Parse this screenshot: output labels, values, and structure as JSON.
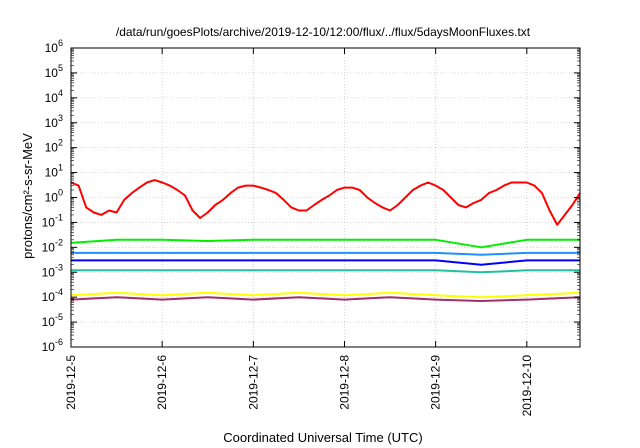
{
  "chart_data": {
    "type": "line",
    "title": "/data/run/goesPlots/archive/2019-12-10/12:00/flux/../flux/5daysMoonFluxes.txt",
    "xlabel": "Coordinated Universal Time (UTC)",
    "ylabel": "protons/cm²-s-sr-MeV",
    "y_scale": "log",
    "ylim": [
      1e-06,
      1000000.0
    ],
    "xlim": [
      "2019-12-05",
      "2019-12-10T14:00"
    ],
    "grid": true,
    "x_ticks": [
      "2019-12-5",
      "2019-12-6",
      "2019-12-7",
      "2019-12-8",
      "2019-12-9",
      "2019-12-10"
    ],
    "x_tick_values": [
      "2019-12-05",
      "2019-12-06",
      "2019-12-07",
      "2019-12-08",
      "2019-12-09",
      "2019-12-10"
    ],
    "y_ticks": [
      {
        "base": "10",
        "exp": "-6",
        "value": 1e-06
      },
      {
        "base": "10",
        "exp": "-5",
        "value": 1e-05
      },
      {
        "base": "10",
        "exp": "-4",
        "value": 0.0001
      },
      {
        "base": "10",
        "exp": "-3",
        "value": 0.001
      },
      {
        "base": "10",
        "exp": "-2",
        "value": 0.01
      },
      {
        "base": "10",
        "exp": "-1",
        "value": 0.1
      },
      {
        "base": "10",
        "exp": "0",
        "value": 1
      },
      {
        "base": "10",
        "exp": "1",
        "value": 10
      },
      {
        "base": "10",
        "exp": "2",
        "value": 100
      },
      {
        "base": "10",
        "exp": "3",
        "value": 1000
      },
      {
        "base": "10",
        "exp": "4",
        "value": 10000
      },
      {
        "base": "10",
        "exp": "5",
        "value": 100000
      },
      {
        "base": "10",
        "exp": "6",
        "value": 1000000
      }
    ],
    "series": [
      {
        "color": "#ff0000",
        "x": [
          "2019-12-05T00:00",
          "2019-12-05T02:00",
          "2019-12-05T04:00",
          "2019-12-05T06:00",
          "2019-12-05T08:00",
          "2019-12-05T10:00",
          "2019-12-05T12:00",
          "2019-12-05T14:00",
          "2019-12-05T16:00",
          "2019-12-05T18:00",
          "2019-12-05T20:00",
          "2019-12-05T22:00",
          "2019-12-06T00:00",
          "2019-12-06T02:00",
          "2019-12-06T04:00",
          "2019-12-06T06:00",
          "2019-12-06T08:00",
          "2019-12-06T10:00",
          "2019-12-06T12:00",
          "2019-12-06T14:00",
          "2019-12-06T16:00",
          "2019-12-06T18:00",
          "2019-12-06T20:00",
          "2019-12-06T22:00",
          "2019-12-07T00:00",
          "2019-12-07T02:00",
          "2019-12-07T04:00",
          "2019-12-07T06:00",
          "2019-12-07T08:00",
          "2019-12-07T10:00",
          "2019-12-07T12:00",
          "2019-12-07T14:00",
          "2019-12-07T16:00",
          "2019-12-07T18:00",
          "2019-12-07T20:00",
          "2019-12-07T22:00",
          "2019-12-08T00:00",
          "2019-12-08T02:00",
          "2019-12-08T04:00",
          "2019-12-08T06:00",
          "2019-12-08T08:00",
          "2019-12-08T10:00",
          "2019-12-08T12:00",
          "2019-12-08T14:00",
          "2019-12-08T16:00",
          "2019-12-08T18:00",
          "2019-12-08T20:00",
          "2019-12-08T22:00",
          "2019-12-09T00:00",
          "2019-12-09T02:00",
          "2019-12-09T04:00",
          "2019-12-09T06:00",
          "2019-12-09T08:00",
          "2019-12-09T10:00",
          "2019-12-09T12:00",
          "2019-12-09T14:00",
          "2019-12-09T16:00",
          "2019-12-09T18:00",
          "2019-12-09T20:00",
          "2019-12-09T22:00",
          "2019-12-10T00:00",
          "2019-12-10T02:00",
          "2019-12-10T04:00",
          "2019-12-10T06:00",
          "2019-12-10T08:00",
          "2019-12-10T10:00",
          "2019-12-10T12:00",
          "2019-12-10T14:00"
        ],
        "values": [
          4,
          3,
          0.4,
          0.25,
          0.2,
          0.3,
          0.25,
          0.8,
          1.5,
          2.5,
          4,
          5,
          4,
          3,
          2,
          1.2,
          0.3,
          0.15,
          0.25,
          0.5,
          0.8,
          1.5,
          2.5,
          3,
          3,
          2.5,
          2,
          1.5,
          0.8,
          0.4,
          0.3,
          0.3,
          0.5,
          0.8,
          1.2,
          2,
          2.5,
          2.5,
          2,
          1,
          0.6,
          0.4,
          0.3,
          0.5,
          1,
          2,
          3,
          4,
          3,
          2,
          1,
          0.5,
          0.4,
          0.6,
          0.8,
          1.5,
          2,
          3,
          4,
          4,
          4,
          3,
          1.5,
          0.3,
          0.08,
          0.2,
          0.5,
          1.5
        ]
      },
      {
        "color": "#00ee00",
        "x": [
          "2019-12-05T00:00",
          "2019-12-05T12:00",
          "2019-12-06T00:00",
          "2019-12-06T12:00",
          "2019-12-07T00:00",
          "2019-12-07T12:00",
          "2019-12-08T00:00",
          "2019-12-08T12:00",
          "2019-12-09T00:00",
          "2019-12-09T12:00",
          "2019-12-10T00:00",
          "2019-12-10T14:00"
        ],
        "values": [
          0.015,
          0.02,
          0.02,
          0.018,
          0.02,
          0.02,
          0.02,
          0.02,
          0.02,
          0.01,
          0.02,
          0.02
        ]
      },
      {
        "color": "#0000ff",
        "x": [
          "2019-12-05T00:00",
          "2019-12-05T12:00",
          "2019-12-06T00:00",
          "2019-12-06T12:00",
          "2019-12-07T00:00",
          "2019-12-07T12:00",
          "2019-12-08T00:00",
          "2019-12-08T12:00",
          "2019-12-09T00:00",
          "2019-12-09T12:00",
          "2019-12-10T00:00",
          "2019-12-10T14:00"
        ],
        "values": [
          0.003,
          0.003,
          0.003,
          0.003,
          0.003,
          0.003,
          0.003,
          0.003,
          0.003,
          0.002,
          0.003,
          0.003
        ]
      },
      {
        "color": "#1e90ff",
        "x": [
          "2019-12-05T00:00",
          "2019-12-05T12:00",
          "2019-12-06T00:00",
          "2019-12-06T12:00",
          "2019-12-07T00:00",
          "2019-12-07T12:00",
          "2019-12-08T00:00",
          "2019-12-08T12:00",
          "2019-12-09T00:00",
          "2019-12-09T12:00",
          "2019-12-10T00:00",
          "2019-12-10T14:00"
        ],
        "values": [
          0.006,
          0.006,
          0.006,
          0.006,
          0.006,
          0.006,
          0.006,
          0.006,
          0.006,
          0.005,
          0.006,
          0.006
        ]
      },
      {
        "color": "#20c0a0",
        "x": [
          "2019-12-05T00:00",
          "2019-12-05T12:00",
          "2019-12-06T00:00",
          "2019-12-06T12:00",
          "2019-12-07T00:00",
          "2019-12-07T12:00",
          "2019-12-08T00:00",
          "2019-12-08T12:00",
          "2019-12-09T00:00",
          "2019-12-09T12:00",
          "2019-12-10T00:00",
          "2019-12-10T14:00"
        ],
        "values": [
          0.0012,
          0.0012,
          0.0012,
          0.0012,
          0.0012,
          0.0012,
          0.0012,
          0.0012,
          0.0012,
          0.001,
          0.0012,
          0.0012
        ]
      },
      {
        "color": "#ffff00",
        "x": [
          "2019-12-05T00:00",
          "2019-12-05T12:00",
          "2019-12-06T00:00",
          "2019-12-06T12:00",
          "2019-12-07T00:00",
          "2019-12-07T12:00",
          "2019-12-08T00:00",
          "2019-12-08T12:00",
          "2019-12-09T00:00",
          "2019-12-09T12:00",
          "2019-12-10T00:00",
          "2019-12-10T14:00"
        ],
        "values": [
          0.00012,
          0.00015,
          0.00012,
          0.00015,
          0.00012,
          0.00015,
          0.00012,
          0.00015,
          0.00012,
          0.0001,
          0.00012,
          0.00015
        ]
      },
      {
        "color": "#a0306a",
        "x": [
          "2019-12-05T00:00",
          "2019-12-05T12:00",
          "2019-12-06T00:00",
          "2019-12-06T12:00",
          "2019-12-07T00:00",
          "2019-12-07T12:00",
          "2019-12-08T00:00",
          "2019-12-08T12:00",
          "2019-12-09T00:00",
          "2019-12-09T12:00",
          "2019-12-10T00:00",
          "2019-12-10T14:00"
        ],
        "values": [
          8e-05,
          0.0001,
          8e-05,
          0.0001,
          8e-05,
          0.0001,
          8e-05,
          0.0001,
          8e-05,
          7e-05,
          8e-05,
          0.0001
        ]
      }
    ]
  }
}
